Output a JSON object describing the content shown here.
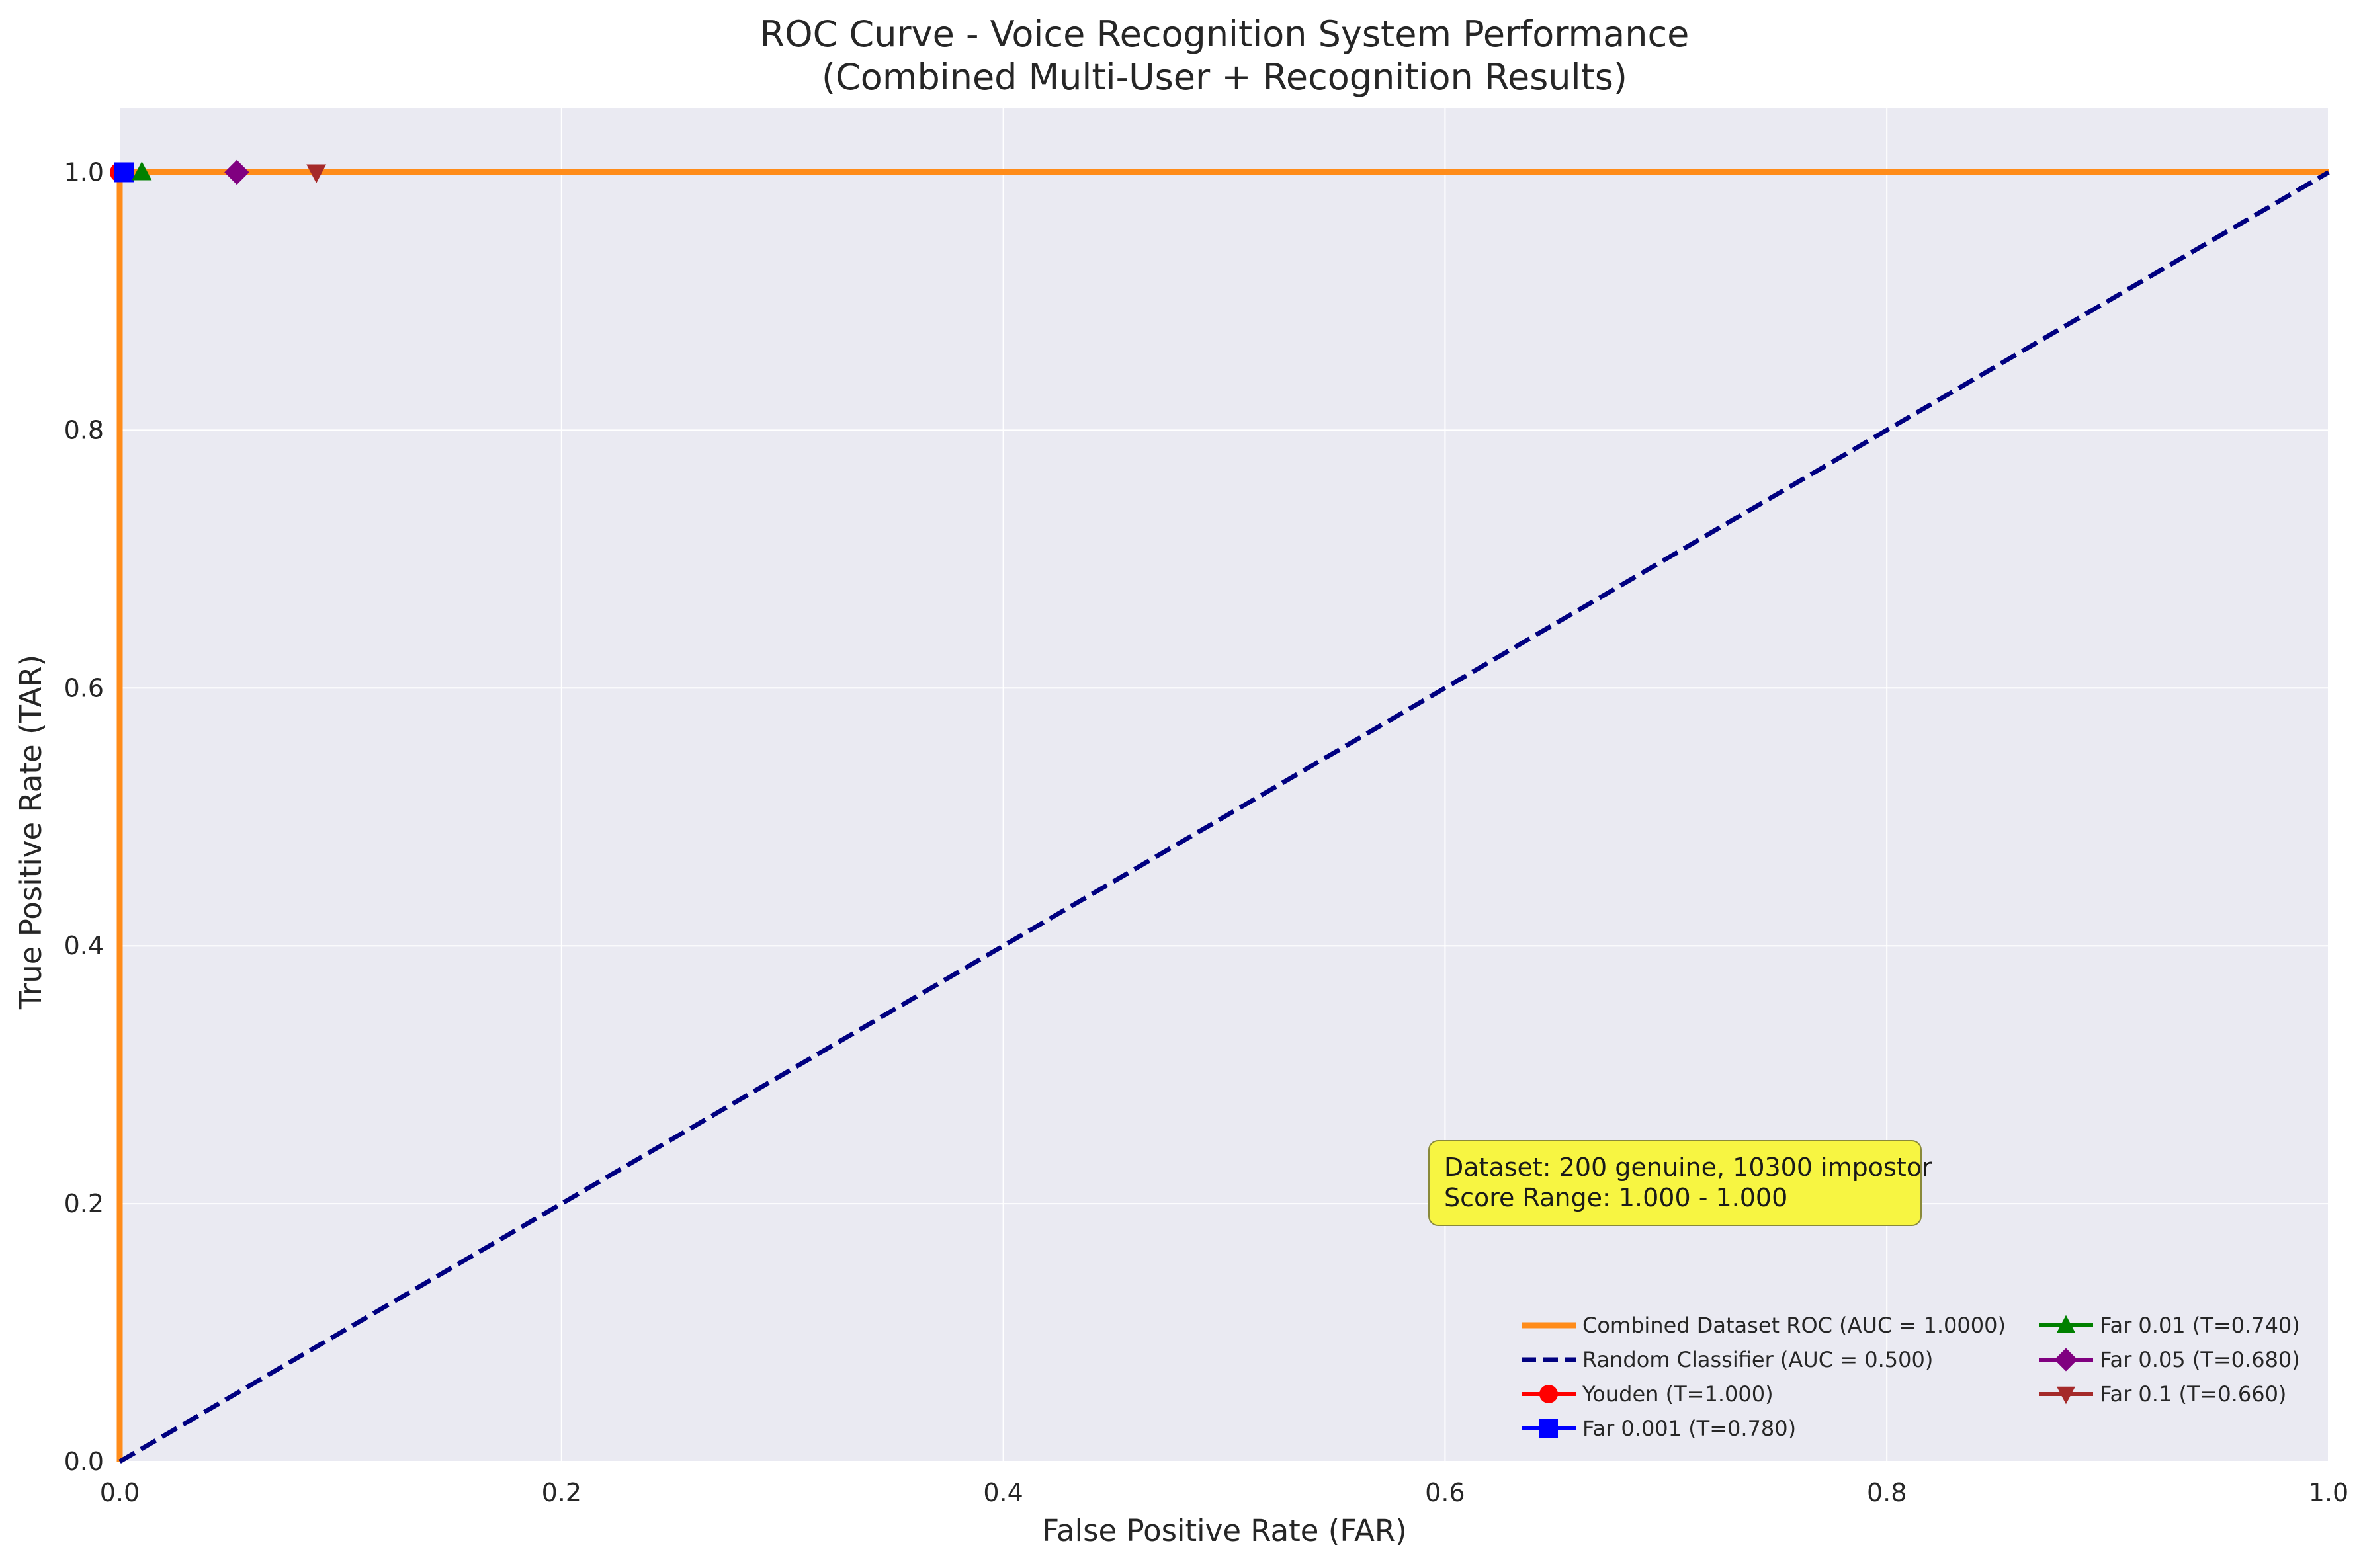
{
  "chart_data": {
    "type": "line",
    "title": "ROC Curve - Voice Recognition System Performance",
    "subtitle": "(Combined Multi-User + Recognition Results)",
    "xlabel": "False Positive Rate (FAR)",
    "ylabel": "True Positive Rate (TAR)",
    "xlim": [
      0.0,
      1.0
    ],
    "ylim": [
      0.0,
      1.05
    ],
    "xticks": [
      "0.0",
      "0.2",
      "0.4",
      "0.6",
      "0.8",
      "1.0"
    ],
    "yticks": [
      "0.0",
      "0.2",
      "0.4",
      "0.6",
      "0.8",
      "1.0"
    ],
    "grid": true,
    "legend_position": "lower-right",
    "annotation": [
      "Dataset: 200 genuine, 10300 impostor",
      "Score Range: 1.000 - 1.000"
    ],
    "colors": {
      "background": "#eaeaf2",
      "roc": "#ff8c1a",
      "random": "#000080",
      "annotation_box": "#f7f542"
    },
    "series": [
      {
        "name": "Combined Dataset ROC (AUC = 1.0000)",
        "style": "line",
        "color": "#ff8c1a",
        "x": [
          0.0,
          0.0,
          1.0
        ],
        "y": [
          0.0,
          1.0,
          1.0
        ]
      },
      {
        "name": "Random Classifier (AUC = 0.500)",
        "style": "dashed",
        "color": "#000080",
        "x": [
          0.0,
          1.0
        ],
        "y": [
          0.0,
          1.0
        ]
      }
    ],
    "points": [
      {
        "name": "Youden (T=1.000)",
        "marker": "circle",
        "color": "#ff0000",
        "x": 0.0,
        "y": 1.0
      },
      {
        "name": "Far 0.001 (T=0.780)",
        "marker": "square",
        "color": "#0000ff",
        "x": 0.002,
        "y": 1.0
      },
      {
        "name": "Far 0.01 (T=0.740)",
        "marker": "triangle-up",
        "color": "#008000",
        "x": 0.01,
        "y": 1.0
      },
      {
        "name": "Far 0.05 (T=0.680)",
        "marker": "diamond",
        "color": "#800080",
        "x": 0.053,
        "y": 1.0
      },
      {
        "name": "Far 0.1 (T=0.660)",
        "marker": "triangle-down",
        "color": "#a52a2a",
        "x": 0.089,
        "y": 1.0
      }
    ]
  }
}
